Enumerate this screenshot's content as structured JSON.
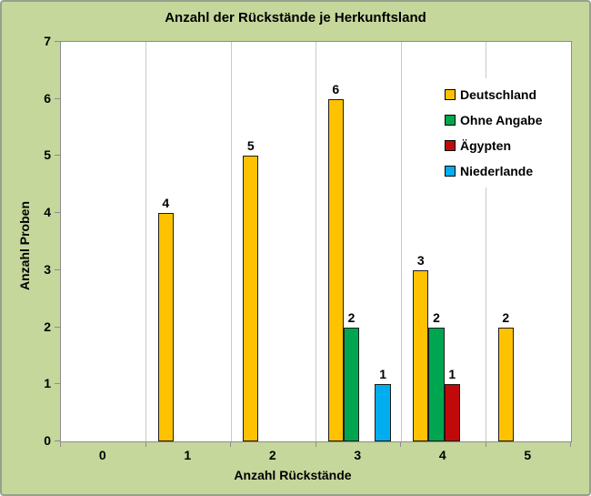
{
  "window": {
    "background_color": "#C5D79B",
    "plot_background_color": "#FFFFFF",
    "axis_line_color": "#8C8C8C",
    "gridline_color": "#C9C9C9"
  },
  "chart_data": {
    "type": "bar",
    "title": "Anzahl der Rückstände je Herkunftsland",
    "xlabel": "Anzahl Rückstände",
    "ylabel": "Anzahl Proben",
    "categories": [
      "0",
      "1",
      "2",
      "3",
      "4",
      "5"
    ],
    "series": [
      {
        "name": "Deutschland",
        "color": "#FFC200",
        "values": [
          null,
          4,
          5,
          6,
          3,
          2
        ]
      },
      {
        "name": "Ohne Angabe",
        "color": "#00A64F",
        "values": [
          null,
          null,
          null,
          2,
          2,
          null
        ]
      },
      {
        "name": "Ägypten",
        "color": "#C00A0A",
        "values": [
          null,
          null,
          null,
          null,
          1,
          null
        ]
      },
      {
        "name": "Niederlande",
        "color": "#00AEEF",
        "values": [
          null,
          null,
          null,
          1,
          null,
          null
        ]
      }
    ],
    "ylim": [
      0,
      7
    ],
    "y_ticks": [
      0,
      1,
      2,
      3,
      4,
      5,
      6,
      7
    ],
    "grid": "vertical category separators only",
    "legend_position": "inside-top-right",
    "data_labels": true
  }
}
